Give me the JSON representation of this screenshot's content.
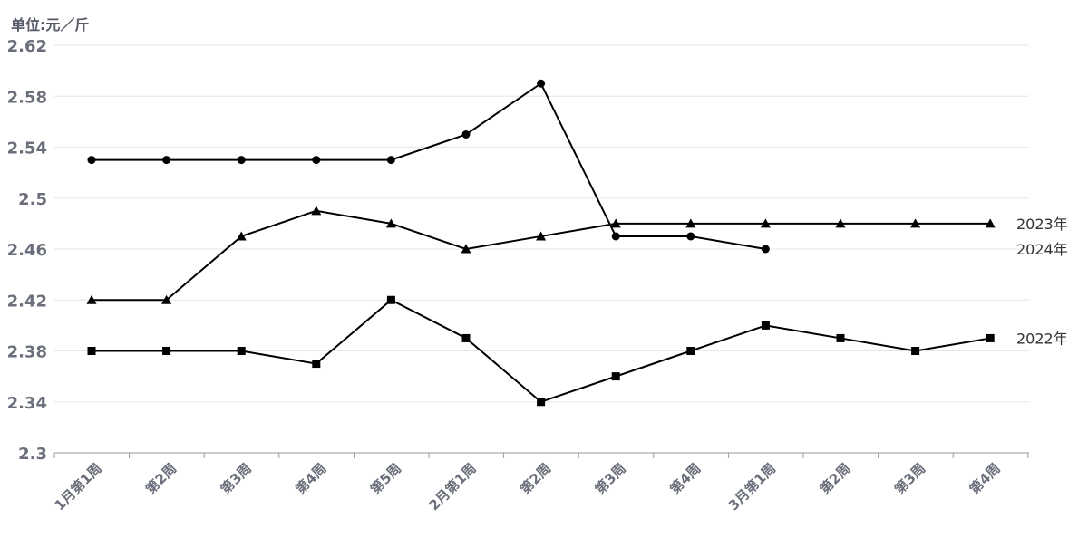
{
  "chart_data": {
    "type": "line",
    "unit_label": "单位:元／斤",
    "categories": [
      "1月第1周",
      "第2周",
      "第3周",
      "第4周",
      "第5周",
      "2月第1周",
      "第2周",
      "第3周",
      "第4周",
      "3月第1周",
      "第2周",
      "第3周",
      "第4周"
    ],
    "ylim": [
      2.3,
      2.62
    ],
    "yticks": [
      "2.3",
      "2.34",
      "2.38",
      "2.42",
      "2.46",
      "2.5",
      "2.54",
      "2.58",
      "2.62"
    ],
    "grid": true,
    "series": [
      {
        "name": "2023年",
        "marker": "triangle",
        "values": [
          2.42,
          2.42,
          2.47,
          2.49,
          2.48,
          2.46,
          2.47,
          2.48,
          2.48,
          2.48,
          2.48,
          2.48,
          2.48
        ]
      },
      {
        "name": "2024年",
        "marker": "circle",
        "values": [
          2.53,
          2.53,
          2.53,
          2.53,
          2.53,
          2.55,
          2.59,
          2.47,
          2.47,
          2.46,
          null,
          null,
          null
        ]
      },
      {
        "name": "2022年",
        "marker": "square",
        "values": [
          2.38,
          2.38,
          2.38,
          2.37,
          2.42,
          2.39,
          2.34,
          2.36,
          2.38,
          2.4,
          2.39,
          2.38,
          2.39
        ]
      }
    ],
    "colors": {
      "line": "#000000",
      "grid": "#e6e6e6",
      "axis_text": "#6b6f7b",
      "series_label": "#333333"
    }
  }
}
